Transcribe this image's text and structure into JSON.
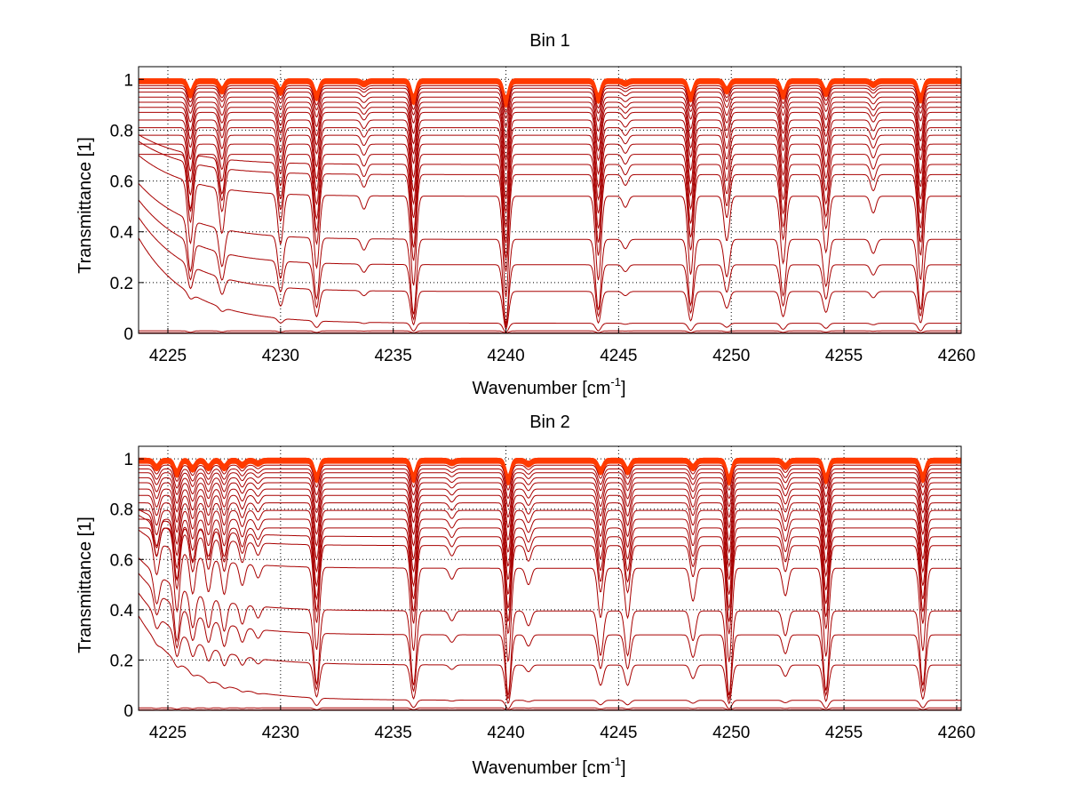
{
  "chart_data": [
    {
      "type": "line",
      "title": "Bin 1",
      "xlabel": "Wavenumber [cm",
      "xlabel_sup": "-1",
      "xlabel_tail": "]",
      "ylabel": "Transmittance [1]",
      "xlim": [
        4223.7,
        4260.2
      ],
      "ylim": [
        0,
        1.05
      ],
      "grid": true,
      "xticks": [
        4225,
        4230,
        4235,
        4240,
        4245,
        4250,
        4255,
        4260
      ],
      "yticks": [
        0,
        0.2,
        0.4,
        0.6,
        0.8,
        1
      ],
      "xtick_labels": [
        "4225",
        "4230",
        "4235",
        "4240",
        "4245",
        "4250",
        "4255",
        "4260"
      ],
      "ytick_labels": [
        "0",
        "0.2",
        "0.4",
        "0.6",
        "0.8",
        "1"
      ],
      "baselines": [
        1.0,
        1.0,
        0.995,
        0.99,
        0.985,
        0.975,
        0.965,
        0.95,
        0.93,
        0.91,
        0.89,
        0.87,
        0.84,
        0.81,
        0.78,
        0.745,
        0.705,
        0.665,
        0.625,
        0.54,
        0.37,
        0.27,
        0.165,
        0.04,
        0.01,
        0.002
      ],
      "absorption_lines": [
        {
          "x": 4226.0,
          "depth": 0.55
        },
        {
          "x": 4227.4,
          "depth": 0.4
        },
        {
          "x": 4230.0,
          "depth": 0.45
        },
        {
          "x": 4231.6,
          "depth": 0.65
        },
        {
          "x": 4233.7,
          "depth": 0.12
        },
        {
          "x": 4235.9,
          "depth": 0.8
        },
        {
          "x": 4240.0,
          "depth": 0.9
        },
        {
          "x": 4244.1,
          "depth": 0.75
        },
        {
          "x": 4245.3,
          "depth": 0.1
        },
        {
          "x": 4248.2,
          "depth": 0.7
        },
        {
          "x": 4249.8,
          "depth": 0.4
        },
        {
          "x": 4252.3,
          "depth": 0.6
        },
        {
          "x": 4254.2,
          "depth": 0.5
        },
        {
          "x": 4256.3,
          "depth": 0.15
        },
        {
          "x": 4258.4,
          "depth": 0.75
        }
      ]
    },
    {
      "type": "line",
      "title": "Bin 2",
      "xlabel": "Wavenumber [cm",
      "xlabel_sup": "-1",
      "xlabel_tail": "]",
      "ylabel": "Transmittance [1]",
      "xlim": [
        4223.7,
        4260.2
      ],
      "ylim": [
        0,
        1.05
      ],
      "grid": true,
      "xticks": [
        4225,
        4230,
        4235,
        4240,
        4245,
        4250,
        4255,
        4260
      ],
      "yticks": [
        0,
        0.2,
        0.4,
        0.6,
        0.8,
        1
      ],
      "xtick_labels": [
        "4225",
        "4230",
        "4235",
        "4240",
        "4245",
        "4250",
        "4255",
        "4260"
      ],
      "ytick_labels": [
        "0",
        "0.2",
        "0.4",
        "0.6",
        "0.8",
        "1"
      ],
      "baselines": [
        1.0,
        1.0,
        0.995,
        0.99,
        0.985,
        0.975,
        0.96,
        0.945,
        0.925,
        0.905,
        0.88,
        0.855,
        0.825,
        0.795,
        0.76,
        0.725,
        0.69,
        0.655,
        0.565,
        0.395,
        0.3,
        0.18,
        0.04,
        0.01,
        0.002
      ],
      "absorption_lines": [
        {
          "x": 4224.5,
          "depth": 0.3
        },
        {
          "x": 4225.4,
          "depth": 0.55
        },
        {
          "x": 4226.1,
          "depth": 0.35
        },
        {
          "x": 4226.8,
          "depth": 0.3
        },
        {
          "x": 4227.5,
          "depth": 0.3
        },
        {
          "x": 4228.3,
          "depth": 0.2
        },
        {
          "x": 4229.0,
          "depth": 0.12
        },
        {
          "x": 4231.6,
          "depth": 0.75
        },
        {
          "x": 4235.9,
          "depth": 0.75
        },
        {
          "x": 4237.6,
          "depth": 0.1
        },
        {
          "x": 4240.1,
          "depth": 0.85
        },
        {
          "x": 4241.0,
          "depth": 0.15
        },
        {
          "x": 4244.2,
          "depth": 0.45
        },
        {
          "x": 4245.4,
          "depth": 0.45
        },
        {
          "x": 4248.3,
          "depth": 0.3
        },
        {
          "x": 4249.9,
          "depth": 0.85
        },
        {
          "x": 4252.4,
          "depth": 0.25
        },
        {
          "x": 4254.2,
          "depth": 0.8
        },
        {
          "x": 4258.5,
          "depth": 0.75
        }
      ]
    }
  ]
}
